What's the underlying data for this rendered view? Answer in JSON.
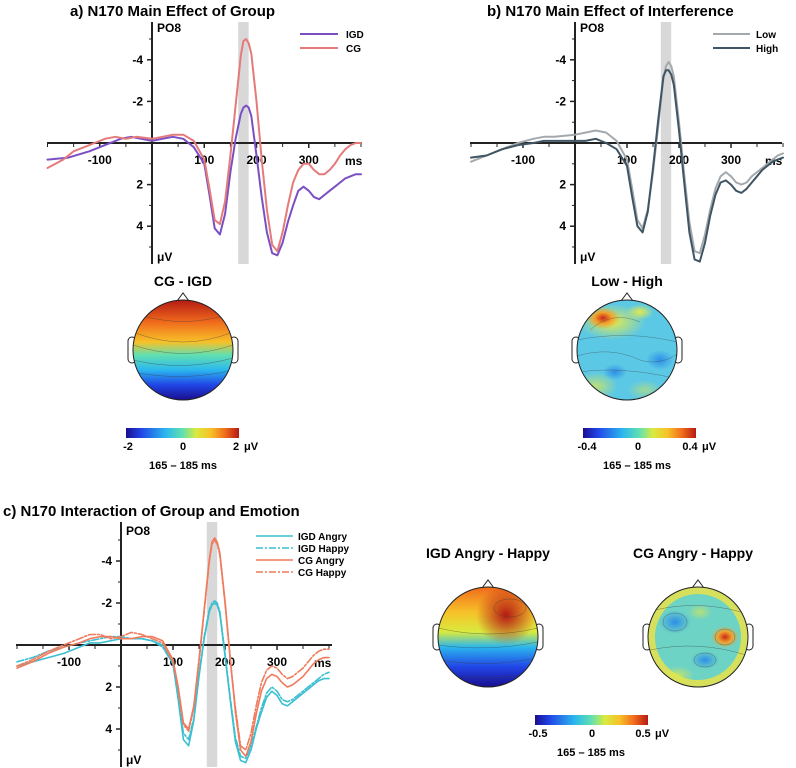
{
  "chart_data": [
    {
      "type": "line",
      "title": "a) N170 Main Effect of Group",
      "channel": "PO8",
      "xlabel": "ms",
      "ylabel": "μV",
      "xlim": [
        -200,
        400
      ],
      "ylim": [
        -5.8,
        5.8
      ],
      "y_inverted": true,
      "x_ticks": [
        -100,
        100,
        200,
        300
      ],
      "y_ticks": [
        -4,
        -2,
        2,
        4
      ],
      "highlight_window": [
        165,
        185
      ],
      "legend": "top-right",
      "series": [
        {
          "name": "IGD",
          "color": "#7b4fc4",
          "x": [
            -200,
            -160,
            -120,
            -90,
            -60,
            -40,
            0,
            20,
            40,
            60,
            80,
            100,
            110,
            120,
            130,
            140,
            150,
            160,
            170,
            175,
            180,
            185,
            190,
            200,
            210,
            220,
            230,
            240,
            250,
            260,
            270,
            280,
            290,
            300,
            310,
            320,
            330,
            340,
            350,
            360,
            370,
            380,
            390,
            400
          ],
          "y": [
            0.8,
            0.7,
            0.4,
            0.1,
            -0.2,
            -0.3,
            -0.1,
            -0.2,
            -0.3,
            -0.2,
            0.2,
            1.0,
            2.5,
            4.1,
            4.4,
            3.4,
            1.4,
            -0.2,
            -1.4,
            -1.7,
            -1.8,
            -1.7,
            -1.3,
            0.6,
            2.6,
            4.3,
            5.3,
            5.4,
            4.8,
            3.8,
            3.0,
            2.3,
            2.1,
            2.3,
            2.6,
            2.7,
            2.5,
            2.3,
            2.1,
            1.9,
            1.7,
            1.6,
            1.5,
            1.5
          ]
        },
        {
          "name": "CG",
          "color": "#e57a7a",
          "x": [
            -200,
            -170,
            -150,
            -130,
            -110,
            -90,
            -70,
            -50,
            -30,
            0,
            20,
            40,
            60,
            80,
            100,
            110,
            120,
            130,
            140,
            150,
            160,
            170,
            175,
            180,
            185,
            190,
            200,
            210,
            220,
            230,
            240,
            250,
            260,
            270,
            280,
            290,
            300,
            310,
            320,
            330,
            340,
            350,
            360,
            370,
            380,
            390,
            400
          ],
          "y": [
            1.2,
            0.8,
            0.4,
            0.2,
            0.0,
            -0.2,
            -0.3,
            -0.2,
            -0.3,
            -0.2,
            -0.3,
            -0.4,
            -0.4,
            -0.1,
            0.8,
            2.2,
            3.7,
            3.9,
            2.8,
            0.6,
            -1.8,
            -4.2,
            -4.9,
            -5.0,
            -4.8,
            -4.3,
            -2.0,
            0.8,
            3.2,
            4.9,
            5.2,
            4.3,
            3.0,
            1.9,
            1.3,
            1.0,
            1.0,
            1.3,
            1.5,
            1.5,
            1.3,
            1.0,
            0.6,
            0.3,
            0.1,
            0.0,
            0.0
          ]
        }
      ]
    },
    {
      "type": "line",
      "title": "b) N170 Main Effect of Interference",
      "channel": "PO8",
      "xlabel": "ms",
      "ylabel": "μV",
      "xlim": [
        -200,
        400
      ],
      "ylim": [
        -5.8,
        5.8
      ],
      "y_inverted": true,
      "x_ticks": [
        -100,
        100,
        200,
        300
      ],
      "y_ticks": [
        -4,
        -2,
        2,
        4
      ],
      "highlight_window": [
        165,
        185
      ],
      "legend": "top-right",
      "series": [
        {
          "name": "Low",
          "color": "#a3a9ad",
          "x": [
            -200,
            -170,
            -140,
            -110,
            -80,
            -60,
            -40,
            0,
            20,
            40,
            60,
            80,
            100,
            110,
            120,
            130,
            140,
            150,
            160,
            170,
            175,
            180,
            185,
            190,
            200,
            210,
            220,
            230,
            240,
            250,
            260,
            270,
            280,
            290,
            300,
            310,
            320,
            330,
            340,
            350,
            360,
            370,
            380,
            390,
            400
          ],
          "y": [
            0.9,
            0.6,
            0.3,
            0.0,
            -0.2,
            -0.3,
            -0.3,
            -0.4,
            -0.5,
            -0.6,
            -0.5,
            -0.1,
            0.8,
            2.2,
            3.7,
            4.1,
            3.2,
            1.4,
            -0.8,
            -3.1,
            -3.7,
            -3.9,
            -3.7,
            -3.2,
            -1.0,
            1.5,
            3.8,
            5.2,
            5.3,
            4.4,
            3.2,
            2.2,
            1.6,
            1.4,
            1.6,
            1.9,
            2.0,
            1.9,
            1.6,
            1.4,
            1.2,
            1.0,
            0.8,
            0.6,
            0.5
          ]
        },
        {
          "name": "High",
          "color": "#3f5563",
          "x": [
            -200,
            -170,
            -140,
            -110,
            -80,
            -60,
            -40,
            0,
            20,
            40,
            60,
            80,
            100,
            110,
            120,
            130,
            140,
            150,
            160,
            170,
            175,
            180,
            185,
            190,
            200,
            210,
            220,
            230,
            240,
            250,
            260,
            270,
            280,
            290,
            300,
            310,
            320,
            330,
            340,
            350,
            360,
            370,
            380,
            390,
            400
          ],
          "y": [
            0.7,
            0.6,
            0.3,
            0.1,
            0.0,
            -0.1,
            -0.1,
            -0.1,
            -0.1,
            -0.2,
            0.0,
            0.3,
            1.1,
            2.6,
            4.0,
            4.3,
            3.3,
            1.2,
            -1.1,
            -3.2,
            -3.5,
            -3.5,
            -3.3,
            -2.8,
            -0.6,
            1.9,
            4.3,
            5.6,
            5.7,
            4.8,
            3.5,
            2.5,
            1.9,
            1.8,
            2.0,
            2.3,
            2.4,
            2.2,
            1.9,
            1.6,
            1.3,
            1.1,
            0.9,
            0.8,
            0.7
          ]
        }
      ]
    },
    {
      "type": "line",
      "title": "c) N170 Interaction of Group and Emotion",
      "channel": "PO8",
      "xlabel": "ms",
      "ylabel": "μV",
      "xlim": [
        -200,
        400
      ],
      "ylim": [
        -5.8,
        5.8
      ],
      "y_inverted": true,
      "x_ticks": [
        -100,
        100,
        200,
        300
      ],
      "y_ticks": [
        -4,
        -2,
        2,
        4
      ],
      "highlight_window": [
        165,
        185
      ],
      "legend": "top-right",
      "series": [
        {
          "name": "IGD Angry",
          "color": "#3bbfd1",
          "dash": "solid",
          "x": [
            -200,
            -170,
            -140,
            -110,
            -80,
            -60,
            -40,
            -20,
            0,
            20,
            40,
            60,
            80,
            100,
            110,
            120,
            130,
            140,
            150,
            160,
            170,
            175,
            180,
            185,
            190,
            200,
            210,
            220,
            230,
            240,
            250,
            260,
            270,
            280,
            290,
            300,
            310,
            320,
            330,
            340,
            350,
            360,
            370,
            380,
            390,
            400
          ],
          "y": [
            1.0,
            0.8,
            0.6,
            0.4,
            0.1,
            -0.1,
            -0.1,
            -0.2,
            -0.3,
            -0.3,
            -0.3,
            -0.2,
            0.0,
            0.9,
            2.6,
            4.5,
            4.8,
            3.6,
            1.5,
            -0.3,
            -1.6,
            -1.9,
            -2.0,
            -1.9,
            -1.5,
            0.5,
            2.6,
            4.6,
            5.5,
            5.6,
            5.0,
            4.0,
            3.2,
            2.5,
            2.2,
            2.4,
            2.8,
            2.9,
            2.7,
            2.5,
            2.3,
            2.1,
            1.9,
            1.7,
            1.6,
            1.6
          ]
        },
        {
          "name": "IGD Happy",
          "color": "#3bbfd1",
          "dash": "dashdot",
          "x": [
            -200,
            -170,
            -140,
            -110,
            -80,
            -60,
            -40,
            -20,
            0,
            20,
            40,
            60,
            80,
            100,
            110,
            120,
            130,
            140,
            150,
            160,
            170,
            175,
            180,
            185,
            190,
            200,
            210,
            220,
            230,
            240,
            250,
            260,
            270,
            280,
            290,
            300,
            310,
            320,
            330,
            340,
            350,
            360,
            370,
            380,
            390,
            400
          ],
          "y": [
            0.8,
            0.6,
            0.3,
            0.1,
            -0.1,
            -0.2,
            -0.3,
            -0.4,
            -0.4,
            -0.3,
            -0.3,
            -0.2,
            0.1,
            0.9,
            2.5,
            4.2,
            4.5,
            3.5,
            1.4,
            -0.4,
            -1.7,
            -2.0,
            -2.1,
            -2.0,
            -1.6,
            0.4,
            2.5,
            4.4,
            5.3,
            5.4,
            4.8,
            3.9,
            3.0,
            2.3,
            2.0,
            2.2,
            2.6,
            2.7,
            2.6,
            2.4,
            2.2,
            2.0,
            1.8,
            1.6,
            1.4,
            1.3
          ]
        },
        {
          "name": "CG Angry",
          "color": "#f07a5c",
          "dash": "solid",
          "x": [
            -200,
            -170,
            -140,
            -110,
            -80,
            -60,
            -40,
            -20,
            0,
            20,
            40,
            60,
            80,
            100,
            110,
            120,
            130,
            140,
            150,
            160,
            170,
            175,
            180,
            185,
            190,
            200,
            210,
            220,
            230,
            240,
            250,
            260,
            270,
            280,
            290,
            300,
            310,
            320,
            330,
            340,
            350,
            360,
            370,
            380,
            390,
            400
          ],
          "y": [
            1.1,
            0.8,
            0.4,
            0.1,
            -0.1,
            -0.3,
            -0.4,
            -0.4,
            -0.3,
            -0.3,
            -0.4,
            -0.4,
            -0.2,
            0.7,
            2.0,
            3.7,
            4.0,
            2.9,
            0.7,
            -1.7,
            -4.1,
            -4.9,
            -5.1,
            -4.9,
            -4.4,
            -2.1,
            0.6,
            3.2,
            5.0,
            5.3,
            4.6,
            3.3,
            2.2,
            1.6,
            1.4,
            1.5,
            1.8,
            2.0,
            1.9,
            1.7,
            1.5,
            1.2,
            0.9,
            0.7,
            0.6,
            0.6
          ]
        },
        {
          "name": "CG Happy",
          "color": "#f07a5c",
          "dash": "dashdot",
          "x": [
            -200,
            -170,
            -140,
            -110,
            -80,
            -60,
            -40,
            -20,
            0,
            20,
            40,
            60,
            80,
            100,
            110,
            120,
            130,
            140,
            150,
            160,
            170,
            175,
            180,
            185,
            190,
            200,
            210,
            220,
            230,
            240,
            250,
            260,
            270,
            280,
            290,
            300,
            310,
            320,
            330,
            340,
            350,
            360,
            370,
            380,
            390,
            400
          ],
          "y": [
            1.0,
            0.7,
            0.3,
            0.0,
            -0.3,
            -0.5,
            -0.5,
            -0.3,
            -0.4,
            -0.6,
            -0.5,
            -0.3,
            -0.1,
            0.8,
            2.1,
            3.8,
            4.1,
            3.0,
            0.8,
            -1.6,
            -4.0,
            -4.8,
            -5.0,
            -4.8,
            -4.3,
            -2.0,
            0.7,
            3.0,
            4.8,
            5.0,
            4.2,
            2.9,
            1.8,
            1.2,
            1.0,
            1.1,
            1.4,
            1.6,
            1.5,
            1.3,
            1.1,
            0.8,
            0.5,
            0.3,
            0.2,
            0.2
          ]
        }
      ]
    }
  ],
  "topomaps": [
    {
      "title": "CG - IGD",
      "colorbar_ticks": [
        "-2",
        "0",
        "2"
      ],
      "unit": "μV",
      "window_label": "165 – 185 ms"
    },
    {
      "title": "Low - High",
      "colorbar_ticks": [
        "-0.4",
        "0",
        "0.4"
      ],
      "unit": "μV",
      "window_label": "165 – 185 ms"
    },
    {
      "title": "IGD Angry - Happy"
    },
    {
      "title": "CG Angry - Happy",
      "colorbar_ticks": [
        "-0.5",
        "0",
        "0.5"
      ],
      "unit": "μV",
      "window_label": "165 – 185 ms"
    }
  ],
  "colormap": [
    "#1a0e8e",
    "#2145e6",
    "#2bb7ee",
    "#61e0b0",
    "#d9ea3e",
    "#f7c128",
    "#f06a1c",
    "#b41a14"
  ]
}
